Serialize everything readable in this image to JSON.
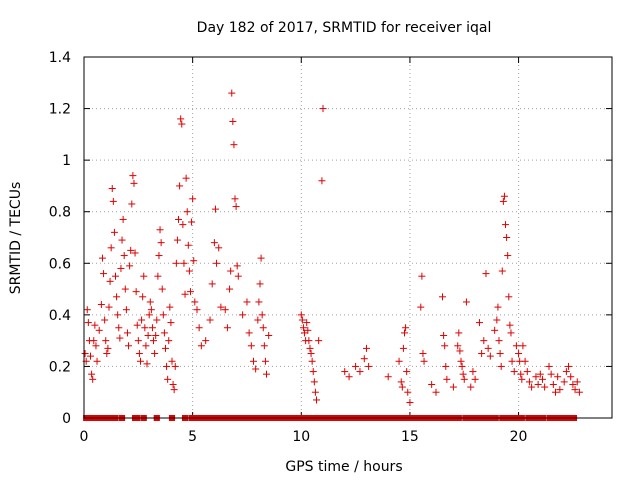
{
  "chart_data": {
    "type": "scatter",
    "title": "Day 182 of 2017, SRMTID for receiver iqal",
    "xlabel": "GPS time / hours",
    "ylabel": "SRMTID / TECUs",
    "xlim": [
      0,
      24.3
    ],
    "ylim": [
      0,
      1.4
    ],
    "x_ticks": [
      0,
      5,
      10,
      15,
      20
    ],
    "y_ticks": [
      0,
      0.2,
      0.4,
      0.6,
      0.8,
      1,
      1.2,
      1.4
    ],
    "x_tick_labels": [
      "0",
      "5",
      "10",
      "15",
      "20"
    ],
    "y_tick_labels": [
      "0",
      "0.2",
      "0.4",
      "0.6",
      "0.8",
      "1",
      "1.2",
      "1.4"
    ],
    "grid": true,
    "marker": "+",
    "color": "#e00000",
    "series": [
      {
        "name": "SRMTID",
        "points": [
          [
            0.05,
            0.25
          ],
          [
            0.1,
            0.22
          ],
          [
            0.15,
            0.42
          ],
          [
            0.2,
            0.37
          ],
          [
            0.25,
            0.3
          ],
          [
            0.3,
            0.24
          ],
          [
            0.35,
            0.17
          ],
          [
            0.4,
            0.15
          ],
          [
            0.45,
            0.3
          ],
          [
            0.5,
            0.36
          ],
          [
            0.55,
            0.28
          ],
          [
            0.6,
            0.22
          ],
          [
            0.7,
            0.34
          ],
          [
            0.8,
            0.44
          ],
          [
            0.85,
            0.62
          ],
          [
            0.9,
            0.56
          ],
          [
            0.95,
            0.38
          ],
          [
            1.0,
            0.3
          ],
          [
            1.05,
            0.25
          ],
          [
            1.1,
            0.27
          ],
          [
            1.15,
            0.43
          ],
          [
            1.2,
            0.53
          ],
          [
            1.25,
            0.66
          ],
          [
            1.3,
            0.89
          ],
          [
            1.35,
            0.84
          ],
          [
            1.4,
            0.72
          ],
          [
            1.45,
            0.55
          ],
          [
            1.5,
            0.47
          ],
          [
            1.55,
            0.4
          ],
          [
            1.6,
            0.35
          ],
          [
            1.65,
            0.31
          ],
          [
            1.7,
            0.58
          ],
          [
            1.75,
            0.69
          ],
          [
            1.8,
            0.77
          ],
          [
            1.85,
            0.63
          ],
          [
            1.9,
            0.5
          ],
          [
            1.95,
            0.42
          ],
          [
            2.0,
            0.33
          ],
          [
            2.05,
            0.28
          ],
          [
            2.1,
            0.59
          ],
          [
            2.15,
            0.65
          ],
          [
            2.2,
            0.83
          ],
          [
            2.25,
            0.94
          ],
          [
            2.3,
            0.91
          ],
          [
            2.35,
            0.64
          ],
          [
            2.4,
            0.49
          ],
          [
            2.45,
            0.36
          ],
          [
            2.5,
            0.3
          ],
          [
            2.55,
            0.25
          ],
          [
            2.6,
            0.22
          ],
          [
            2.65,
            0.38
          ],
          [
            2.7,
            0.47
          ],
          [
            2.75,
            0.55
          ],
          [
            2.8,
            0.35
          ],
          [
            2.85,
            0.28
          ],
          [
            2.9,
            0.21
          ],
          [
            2.95,
            0.32
          ],
          [
            3.0,
            0.4
          ],
          [
            3.05,
            0.45
          ],
          [
            3.1,
            0.42
          ],
          [
            3.15,
            0.35
          ],
          [
            3.2,
            0.3
          ],
          [
            3.25,
            0.25
          ],
          [
            3.3,
            0.32
          ],
          [
            3.35,
            0.38
          ],
          [
            3.4,
            0.55
          ],
          [
            3.45,
            0.63
          ],
          [
            3.5,
            0.73
          ],
          [
            3.55,
            0.68
          ],
          [
            3.6,
            0.5
          ],
          [
            3.65,
            0.4
          ],
          [
            3.7,
            0.33
          ],
          [
            3.75,
            0.27
          ],
          [
            3.8,
            0.2
          ],
          [
            3.85,
            0.15
          ],
          [
            3.9,
            0.3
          ],
          [
            3.95,
            0.43
          ],
          [
            4.0,
            0.37
          ],
          [
            4.05,
            0.22
          ],
          [
            4.1,
            0.13
          ],
          [
            4.15,
            0.11
          ],
          [
            4.2,
            0.2
          ],
          [
            4.25,
            0.6
          ],
          [
            4.3,
            0.69
          ],
          [
            4.35,
            0.77
          ],
          [
            4.4,
            0.9
          ],
          [
            4.45,
            1.16
          ],
          [
            4.5,
            1.14
          ],
          [
            4.55,
            0.75
          ],
          [
            4.6,
            0.6
          ],
          [
            4.65,
            0.48
          ],
          [
            4.7,
            0.93
          ],
          [
            4.75,
            0.8
          ],
          [
            4.8,
            0.67
          ],
          [
            4.85,
            0.57
          ],
          [
            4.9,
            0.49
          ],
          [
            4.95,
            0.76
          ],
          [
            5.0,
            0.85
          ],
          [
            5.05,
            0.61
          ],
          [
            5.1,
            0.45
          ],
          [
            5.2,
            0.42
          ],
          [
            5.3,
            0.35
          ],
          [
            5.4,
            0.28
          ],
          [
            5.6,
            0.3
          ],
          [
            5.8,
            0.38
          ],
          [
            5.9,
            0.52
          ],
          [
            6.0,
            0.68
          ],
          [
            6.05,
            0.81
          ],
          [
            6.1,
            0.6
          ],
          [
            6.2,
            0.66
          ],
          [
            6.3,
            0.43
          ],
          [
            6.5,
            0.42
          ],
          [
            6.6,
            0.35
          ],
          [
            6.7,
            0.5
          ],
          [
            6.75,
            0.57
          ],
          [
            6.8,
            1.26
          ],
          [
            6.85,
            1.15
          ],
          [
            6.9,
            1.06
          ],
          [
            6.95,
            0.85
          ],
          [
            7.0,
            0.82
          ],
          [
            7.05,
            0.59
          ],
          [
            7.1,
            0.55
          ],
          [
            7.3,
            0.4
          ],
          [
            7.5,
            0.45
          ],
          [
            7.6,
            0.33
          ],
          [
            7.7,
            0.28
          ],
          [
            7.8,
            0.22
          ],
          [
            7.9,
            0.19
          ],
          [
            8.0,
            0.38
          ],
          [
            8.05,
            0.45
          ],
          [
            8.1,
            0.52
          ],
          [
            8.15,
            0.62
          ],
          [
            8.2,
            0.4
          ],
          [
            8.25,
            0.35
          ],
          [
            8.3,
            0.28
          ],
          [
            8.35,
            0.22
          ],
          [
            8.4,
            0.17
          ],
          [
            8.5,
            0.32
          ],
          [
            10.0,
            0.4
          ],
          [
            10.05,
            0.38
          ],
          [
            10.1,
            0.35
          ],
          [
            10.15,
            0.33
          ],
          [
            10.2,
            0.3
          ],
          [
            10.25,
            0.37
          ],
          [
            10.3,
            0.34
          ],
          [
            10.35,
            0.3
          ],
          [
            10.4,
            0.27
          ],
          [
            10.45,
            0.25
          ],
          [
            10.5,
            0.22
          ],
          [
            10.55,
            0.18
          ],
          [
            10.6,
            0.14
          ],
          [
            10.65,
            0.1
          ],
          [
            10.7,
            0.07
          ],
          [
            10.8,
            0.3
          ],
          [
            10.95,
            0.92
          ],
          [
            11.0,
            1.2
          ],
          [
            12.0,
            0.18
          ],
          [
            12.2,
            0.16
          ],
          [
            12.5,
            0.2
          ],
          [
            12.7,
            0.18
          ],
          [
            12.9,
            0.23
          ],
          [
            13.0,
            0.27
          ],
          [
            13.1,
            0.2
          ],
          [
            14.0,
            0.16
          ],
          [
            14.5,
            0.22
          ],
          [
            14.6,
            0.14
          ],
          [
            14.65,
            0.12
          ],
          [
            14.7,
            0.27
          ],
          [
            14.75,
            0.33
          ],
          [
            14.8,
            0.35
          ],
          [
            14.85,
            0.18
          ],
          [
            14.9,
            0.1
          ],
          [
            15.0,
            0.06
          ],
          [
            15.5,
            0.43
          ],
          [
            15.55,
            0.55
          ],
          [
            15.6,
            0.25
          ],
          [
            15.65,
            0.22
          ],
          [
            16.0,
            0.13
          ],
          [
            16.2,
            0.1
          ],
          [
            16.5,
            0.47
          ],
          [
            16.55,
            0.32
          ],
          [
            16.6,
            0.28
          ],
          [
            16.65,
            0.2
          ],
          [
            16.7,
            0.15
          ],
          [
            17.0,
            0.12
          ],
          [
            17.2,
            0.28
          ],
          [
            17.25,
            0.33
          ],
          [
            17.3,
            0.26
          ],
          [
            17.35,
            0.22
          ],
          [
            17.4,
            0.2
          ],
          [
            17.45,
            0.17
          ],
          [
            17.5,
            0.15
          ],
          [
            17.6,
            0.45
          ],
          [
            17.8,
            0.12
          ],
          [
            17.9,
            0.18
          ],
          [
            18.0,
            0.15
          ],
          [
            18.2,
            0.37
          ],
          [
            18.3,
            0.25
          ],
          [
            18.4,
            0.3
          ],
          [
            18.5,
            0.56
          ],
          [
            18.6,
            0.27
          ],
          [
            18.7,
            0.24
          ],
          [
            18.9,
            0.34
          ],
          [
            19.0,
            0.38
          ],
          [
            19.05,
            0.43
          ],
          [
            19.1,
            0.3
          ],
          [
            19.15,
            0.25
          ],
          [
            19.2,
            0.2
          ],
          [
            19.25,
            0.57
          ],
          [
            19.3,
            0.84
          ],
          [
            19.35,
            0.86
          ],
          [
            19.4,
            0.75
          ],
          [
            19.45,
            0.7
          ],
          [
            19.5,
            0.63
          ],
          [
            19.55,
            0.47
          ],
          [
            19.6,
            0.36
          ],
          [
            19.65,
            0.33
          ],
          [
            19.7,
            0.22
          ],
          [
            19.8,
            0.18
          ],
          [
            19.9,
            0.28
          ],
          [
            20.0,
            0.25
          ],
          [
            20.05,
            0.22
          ],
          [
            20.1,
            0.17
          ],
          [
            20.15,
            0.15
          ],
          [
            20.2,
            0.28
          ],
          [
            20.3,
            0.22
          ],
          [
            20.4,
            0.18
          ],
          [
            20.5,
            0.14
          ],
          [
            20.6,
            0.12
          ],
          [
            20.8,
            0.16
          ],
          [
            20.9,
            0.13
          ],
          [
            21.0,
            0.17
          ],
          [
            21.1,
            0.15
          ],
          [
            21.2,
            0.12
          ],
          [
            21.4,
            0.2
          ],
          [
            21.5,
            0.17
          ],
          [
            21.6,
            0.13
          ],
          [
            21.7,
            0.1
          ],
          [
            21.8,
            0.16
          ],
          [
            21.9,
            0.11
          ],
          [
            22.1,
            0.14
          ],
          [
            22.2,
            0.18
          ],
          [
            22.3,
            0.2
          ],
          [
            22.4,
            0.16
          ],
          [
            22.5,
            0.13
          ],
          [
            22.6,
            0.11
          ],
          [
            22.7,
            0.14
          ],
          [
            22.8,
            0.1
          ]
        ],
        "zero_segments": [
          [
            0.05,
            0.3
          ],
          [
            0.45,
            0.6
          ],
          [
            0.7,
            1.5
          ],
          [
            1.7,
            1.8
          ],
          [
            2.3,
            2.5
          ],
          [
            2.7,
            2.8
          ],
          [
            3.3,
            3.4
          ],
          [
            4.0,
            4.1
          ],
          [
            4.6,
            4.7
          ],
          [
            4.9,
            8.5
          ],
          [
            8.6,
            8.7
          ],
          [
            8.8,
            10.6
          ],
          [
            10.7,
            15.3
          ],
          [
            15.4,
            16.3
          ],
          [
            16.4,
            17.3
          ],
          [
            17.5,
            19.0
          ],
          [
            19.2,
            19.5
          ],
          [
            19.6,
            20.2
          ],
          [
            20.4,
            21.2
          ],
          [
            21.4,
            21.8
          ],
          [
            21.9,
            22.4
          ],
          [
            22.5,
            22.6
          ]
        ]
      }
    ]
  }
}
